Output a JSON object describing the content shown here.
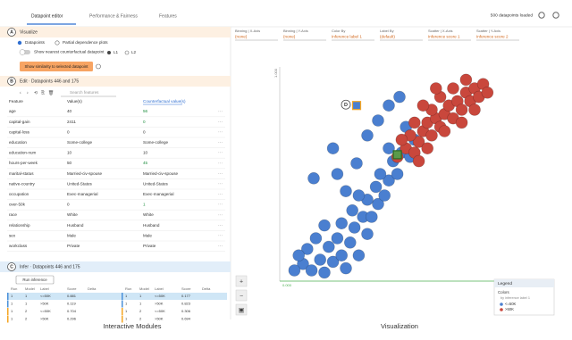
{
  "tabs": [
    "Datapoint editor",
    "Performance & Fairness",
    "Features"
  ],
  "status": "500 datapoints loaded",
  "visualize": {
    "letter": "A",
    "title": "Visualize",
    "radio_1": "Datapoints",
    "radio_2": "Partial dependence plots",
    "toggle": "Show nearest counterfactual datapoint",
    "l1": "L1",
    "l2": "L2",
    "button": "Show similarity to selected datapoint"
  },
  "edit": {
    "letter": "B",
    "title": "Edit · Datapoints 446 and 175",
    "search": "Search features",
    "columns": [
      "Feature",
      "Value(s)",
      "Counterfactual value(s)"
    ],
    "changed_color": "#1e8e3e",
    "rows": [
      [
        "age",
        "40",
        "56"
      ],
      [
        "capital-gain",
        "2411",
        "0"
      ],
      [
        "capital-loss",
        "0",
        "0"
      ],
      [
        "education",
        "Some-college",
        "Some-college"
      ],
      [
        "education-num",
        "10",
        "10"
      ],
      [
        "hours-per-week",
        "50",
        "45"
      ],
      [
        "marital-status",
        "Married-civ-spouse",
        "Married-civ-spouse"
      ],
      [
        "native-country",
        "United-States",
        "United-States"
      ],
      [
        "occupation",
        "Exec-managerial",
        "Exec-managerial"
      ],
      [
        "over-50k",
        "0",
        "1"
      ],
      [
        "race",
        "White",
        "White"
      ],
      [
        "relationship",
        "Husband",
        "Husband"
      ],
      [
        "sex",
        "Male",
        "Male"
      ],
      [
        "workclass",
        "Private",
        "Private"
      ]
    ]
  },
  "infer": {
    "letter": "C",
    "title": "Infer · Datapoints 446 and 175",
    "button": "Run inference",
    "columns": [
      "Run",
      "Model",
      "Label",
      "Score",
      "Delta",
      "Run",
      "Model",
      "Label",
      "Score",
      "Delta"
    ],
    "row_colors": [
      "#4a90d9",
      "#4a90d9",
      "#f5a623",
      "#f5a623"
    ],
    "rows": [
      [
        "1",
        "1",
        "<=50K",
        "0.881",
        "",
        "1",
        "1",
        "<=50K",
        "0.177",
        ""
      ],
      [
        "1",
        "1",
        ">50K",
        "0.119",
        "",
        "1",
        "1",
        ">50K",
        "0.823",
        ""
      ],
      [
        "1",
        "2",
        "<=50K",
        "0.704",
        "",
        "1",
        "2",
        "<=50K",
        "0.306",
        ""
      ],
      [
        "1",
        "2",
        ">50K",
        "0.296",
        "",
        "1",
        "2",
        ">50K",
        "0.694",
        ""
      ]
    ]
  },
  "toolbar": [
    {
      "label": "Binning | X-Axis",
      "value": "(none)"
    },
    {
      "label": "Binning | Y-Axis",
      "value": "(none)"
    },
    {
      "label": "Color By",
      "value": "Inference label 1"
    },
    {
      "label": "Label By",
      "value": "(default)"
    },
    {
      "label": "Scatter | X-Axis",
      "value": "Inference score 1"
    },
    {
      "label": "Scatter | Y-Axis",
      "value": "Inference score 2"
    }
  ],
  "plot": {
    "y_top_label": "1.000",
    "x_left_label": "0.000",
    "selected_label": "D",
    "selected": [
      [
        0.35,
        0.82
      ],
      [
        0.54,
        0.59
      ]
    ],
    "classes": [
      {
        "name": "<=50K",
        "color": "#4a7fd0",
        "points": [
          [
            0.1,
            0.08
          ],
          [
            0.14,
            0.05
          ],
          [
            0.18,
            0.1
          ],
          [
            0.12,
            0.15
          ],
          [
            0.2,
            0.04
          ],
          [
            0.24,
            0.09
          ],
          [
            0.16,
            0.2
          ],
          [
            0.22,
            0.16
          ],
          [
            0.28,
            0.12
          ],
          [
            0.3,
            0.06
          ],
          [
            0.26,
            0.2
          ],
          [
            0.32,
            0.18
          ],
          [
            0.2,
            0.26
          ],
          [
            0.28,
            0.27
          ],
          [
            0.34,
            0.25
          ],
          [
            0.36,
            0.12
          ],
          [
            0.4,
            0.22
          ],
          [
            0.38,
            0.3
          ],
          [
            0.33,
            0.33
          ],
          [
            0.42,
            0.3
          ],
          [
            0.45,
            0.36
          ],
          [
            0.4,
            0.38
          ],
          [
            0.48,
            0.4
          ],
          [
            0.44,
            0.44
          ],
          [
            0.5,
            0.47
          ],
          [
            0.46,
            0.5
          ],
          [
            0.54,
            0.5
          ],
          [
            0.52,
            0.56
          ],
          [
            0.56,
            0.6
          ],
          [
            0.6,
            0.58
          ],
          [
            0.3,
            0.42
          ],
          [
            0.26,
            0.5
          ],
          [
            0.35,
            0.55
          ],
          [
            0.15,
            0.48
          ],
          [
            0.24,
            0.62
          ],
          [
            0.4,
            0.68
          ],
          [
            0.45,
            0.75
          ],
          [
            0.5,
            0.82
          ],
          [
            0.55,
            0.86
          ],
          [
            0.58,
            0.72
          ],
          [
            0.08,
            0.12
          ],
          [
            0.06,
            0.05
          ],
          [
            0.36,
            0.4
          ],
          [
            0.5,
            0.62
          ],
          [
            0.62,
            0.66
          ]
        ]
      },
      {
        "name": ">50K",
        "color": "#c9473c",
        "points": [
          [
            0.58,
            0.62
          ],
          [
            0.62,
            0.6
          ],
          [
            0.64,
            0.65
          ],
          [
            0.6,
            0.68
          ],
          [
            0.66,
            0.7
          ],
          [
            0.7,
            0.68
          ],
          [
            0.68,
            0.74
          ],
          [
            0.72,
            0.76
          ],
          [
            0.74,
            0.72
          ],
          [
            0.76,
            0.78
          ],
          [
            0.7,
            0.8
          ],
          [
            0.78,
            0.82
          ],
          [
            0.8,
            0.76
          ],
          [
            0.82,
            0.84
          ],
          [
            0.84,
            0.8
          ],
          [
            0.86,
            0.88
          ],
          [
            0.88,
            0.84
          ],
          [
            0.9,
            0.9
          ],
          [
            0.92,
            0.86
          ],
          [
            0.74,
            0.86
          ],
          [
            0.8,
            0.9
          ],
          [
            0.86,
            0.94
          ],
          [
            0.94,
            0.92
          ],
          [
            0.66,
            0.82
          ],
          [
            0.62,
            0.74
          ],
          [
            0.56,
            0.66
          ],
          [
            0.72,
            0.9
          ],
          [
            0.96,
            0.88
          ],
          [
            0.9,
            0.8
          ],
          [
            0.84,
            0.74
          ],
          [
            0.54,
            0.58
          ],
          [
            0.76,
            0.7
          ],
          [
            0.68,
            0.62
          ],
          [
            0.64,
            0.56
          ]
        ]
      }
    ]
  },
  "legend": {
    "title": "Legend",
    "colors": "Colors",
    "by": "by inference label 1"
  },
  "captions": [
    "Interactive Modules",
    "Visualization"
  ]
}
